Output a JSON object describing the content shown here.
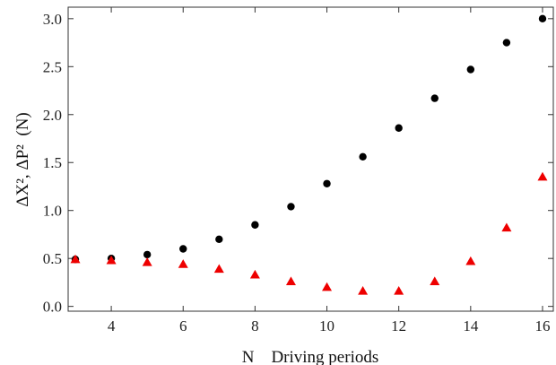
{
  "chart_data": {
    "type": "scatter",
    "xlabel": "N    Driving periods",
    "ylabel": "ΔX², ΔP²  (N)",
    "xlim": [
      2.8,
      16.3
    ],
    "ylim": [
      -0.05,
      3.12
    ],
    "xticks": [
      4,
      6,
      8,
      10,
      12,
      14,
      16
    ],
    "xtick_labels": [
      "4",
      "6",
      "8",
      "10",
      "12",
      "14",
      "16"
    ],
    "yticks": [
      0.0,
      0.5,
      1.0,
      1.5,
      2.0,
      2.5,
      3.0
    ],
    "ytick_labels": [
      "0.0",
      "0.5",
      "1.0",
      "1.5",
      "2.0",
      "2.5",
      "3.0"
    ],
    "grid": false,
    "legend": "none",
    "series": [
      {
        "marker": "circle",
        "color": "#000000",
        "x": [
          3,
          4,
          5,
          6,
          7,
          8,
          9,
          10,
          11,
          12,
          13,
          14,
          15,
          16
        ],
        "y": [
          0.49,
          0.5,
          0.54,
          0.6,
          0.7,
          0.85,
          1.04,
          1.28,
          1.56,
          1.86,
          2.17,
          2.47,
          2.75,
          3.0
        ]
      },
      {
        "marker": "triangle",
        "color": "#ee0000",
        "x": [
          3,
          4,
          5,
          6,
          7,
          8,
          9,
          10,
          11,
          12,
          13,
          14,
          15,
          16
        ],
        "y": [
          0.49,
          0.48,
          0.46,
          0.44,
          0.39,
          0.33,
          0.26,
          0.2,
          0.16,
          0.16,
          0.26,
          0.47,
          0.82,
          1.35
        ]
      }
    ]
  }
}
